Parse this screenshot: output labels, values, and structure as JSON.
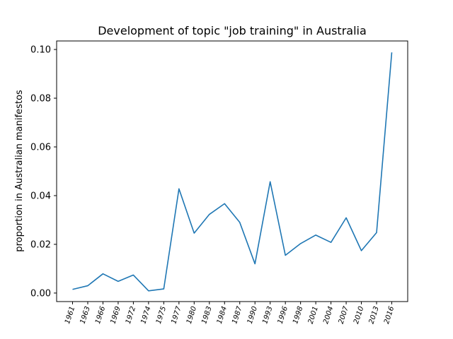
{
  "chart_data": {
    "type": "line",
    "title": "Development of topic \"job training\" in Australia",
    "xlabel": "",
    "ylabel": "proportion in Australian manifestos",
    "categories": [
      "1961",
      "1963",
      "1966",
      "1969",
      "1972",
      "1974",
      "1975",
      "1977",
      "1980",
      "1983",
      "1984",
      "1987",
      "1990",
      "1993",
      "1996",
      "1998",
      "2001",
      "2004",
      "2007",
      "2010",
      "2013",
      "2016"
    ],
    "series": [
      {
        "values": [
          0.0015,
          0.003,
          0.0079,
          0.0048,
          0.0074,
          0.0009,
          0.0017,
          0.0428,
          0.0246,
          0.0323,
          0.0367,
          0.029,
          0.012,
          0.0457,
          0.0155,
          0.0203,
          0.0238,
          0.0208,
          0.0309,
          0.0174,
          0.0248,
          0.0988
        ]
      }
    ],
    "ylim": [
      -0.0035,
      0.1035
    ],
    "yticks": [
      "0.00",
      "0.02",
      "0.04",
      "0.06",
      "0.08",
      "0.10"
    ],
    "ytick_values": [
      0,
      0.02,
      0.04,
      0.06,
      0.08,
      0.1
    ],
    "line_color": "#1f77b4",
    "grid": false,
    "legend": "none"
  }
}
